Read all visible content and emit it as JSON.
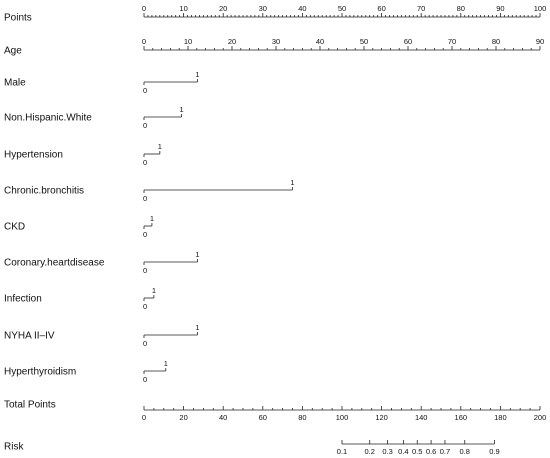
{
  "chart_data": {
    "type": "nomogram",
    "points_scale": {
      "label": "Points",
      "range": [
        0,
        100
      ],
      "tick_labels": [
        "0",
        "10",
        "20",
        "30",
        "40",
        "50",
        "60",
        "70",
        "80",
        "90",
        "100"
      ]
    },
    "variables": [
      {
        "label": "Age",
        "type": "continuous",
        "range": [
          0,
          90
        ],
        "points_range": [
          0,
          100
        ],
        "tick_labels": [
          "0",
          "10",
          "20",
          "30",
          "40",
          "50",
          "60",
          "70",
          "80",
          "90"
        ]
      },
      {
        "label": "Male",
        "type": "binary",
        "low_label": "0",
        "high_label": "1",
        "high_points": 13.5
      },
      {
        "label": "Non.Hispanic.White",
        "type": "binary",
        "low_label": "0",
        "high_label": "1",
        "high_points": 9.5
      },
      {
        "label": "Hypertension",
        "type": "binary",
        "low_label": "0",
        "high_label": "1",
        "high_points": 4
      },
      {
        "label": "Chronic.bronchitis",
        "type": "binary",
        "low_label": "0",
        "high_label": "1",
        "high_points": 37.5
      },
      {
        "label": "CKD",
        "type": "binary",
        "low_label": "0",
        "high_label": "1",
        "high_points": 2
      },
      {
        "label": "Coronary.heartdisease",
        "type": "binary",
        "low_label": "0",
        "high_label": "1",
        "high_points": 13.5
      },
      {
        "label": "Infection",
        "type": "binary",
        "low_label": "0",
        "high_label": "1",
        "high_points": 2.5
      },
      {
        "label": "NYHA II–IV",
        "type": "binary",
        "low_label": "0",
        "high_label": "1",
        "high_points": 13.5
      },
      {
        "label": "Hyperthyroidism",
        "type": "binary",
        "low_label": "0",
        "high_label": "1",
        "high_points": 5.5
      }
    ],
    "total_points": {
      "label": "Total Points",
      "range": [
        0,
        200
      ],
      "tick_labels": [
        "0",
        "20",
        "40",
        "60",
        "80",
        "100",
        "120",
        "140",
        "160",
        "180",
        "200"
      ]
    },
    "risk": {
      "label": "Risk",
      "ticks": [
        {
          "label": "0.1",
          "total_points": 100
        },
        {
          "label": "0.2",
          "total_points": 114
        },
        {
          "label": "0.3",
          "total_points": 123
        },
        {
          "label": "0.4",
          "total_points": 131
        },
        {
          "label": "0.5",
          "total_points": 138
        },
        {
          "label": "0.6",
          "total_points": 145
        },
        {
          "label": "0.7",
          "total_points": 152
        },
        {
          "label": "0.8",
          "total_points": 162
        },
        {
          "label": "0.9",
          "total_points": 177
        }
      ]
    }
  }
}
